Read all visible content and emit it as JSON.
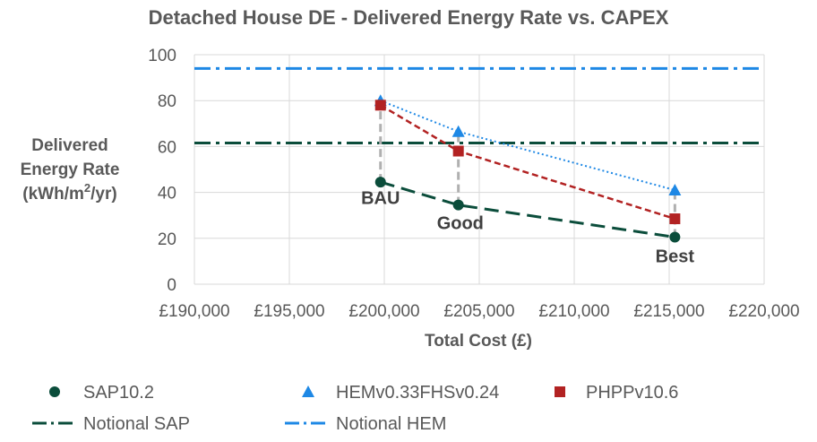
{
  "chart_data": {
    "type": "scatter",
    "title": "Detached House DE - Delivered Energy Rate vs. CAPEX",
    "xlabel": "Total Cost (£)",
    "ylabel_lines": [
      "Delivered",
      "Energy Rate",
      "(kWh/m",
      "2",
      "/yr)"
    ],
    "xlim": [
      190000,
      220000
    ],
    "ylim": [
      0,
      100
    ],
    "x_ticks": [
      190000,
      195000,
      200000,
      205000,
      210000,
      215000,
      220000
    ],
    "x_tick_labels": [
      "£190,000",
      "£195,000",
      "£200,000",
      "£205,000",
      "£210,000",
      "£215,000",
      "£220,000"
    ],
    "y_ticks": [
      0,
      20,
      40,
      60,
      80,
      100
    ],
    "y_tick_labels": [
      "0",
      "20",
      "40",
      "60",
      "80",
      "100"
    ],
    "grid": true,
    "legend_position": "bottom",
    "series": [
      {
        "name": "SAP10.2",
        "marker": "circle",
        "color": "#0b4d3b",
        "x": [
          199800,
          203900,
          215300
        ],
        "y": [
          44.5,
          34.5,
          20.5
        ]
      },
      {
        "name": "HEMv0.33FHSv0.24",
        "marker": "triangle",
        "color": "#1e88e5",
        "x": [
          199800,
          203900,
          215300
        ],
        "y": [
          80,
          66.5,
          41
        ]
      },
      {
        "name": "PHPPv10.6",
        "marker": "square",
        "color": "#b22222",
        "x": [
          199800,
          203900,
          215300
        ],
        "y": [
          78,
          58,
          28.5
        ]
      }
    ],
    "reference_lines": [
      {
        "name": "Notional SAP",
        "y": 61.5,
        "color": "#0b4d3b"
      },
      {
        "name": "Notional HEM",
        "y": 94,
        "color": "#1e88e5"
      }
    ],
    "annotations": [
      {
        "text": "BAU",
        "x": 199800,
        "y": 35
      },
      {
        "text": "Good",
        "x": 204000,
        "y": 24
      },
      {
        "text": "Best",
        "x": 215300,
        "y": 9.5
      }
    ]
  }
}
